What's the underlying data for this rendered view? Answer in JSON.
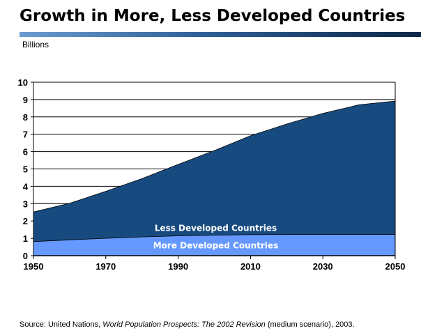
{
  "slide": {
    "title": "Growth in More, Less Developed Countries",
    "units": "Billions",
    "source": {
      "prefix": "Source: United Nations, ",
      "italic": "World Population Prospects: The 2002 Revision",
      "suffix": " (medium scenario), 2003."
    }
  },
  "chart_data": {
    "type": "area",
    "stacked": true,
    "ylabel": "Billions",
    "xlim": [
      1950,
      2050
    ],
    "ylim": [
      0,
      10
    ],
    "x_ticks": [
      1950,
      1970,
      1990,
      2010,
      2030,
      2050
    ],
    "y_ticks": [
      0,
      1,
      2,
      3,
      4,
      5,
      6,
      7,
      8,
      9,
      10
    ],
    "grid": true,
    "x": [
      1950,
      1960,
      1970,
      1980,
      1990,
      2000,
      2010,
      2020,
      2030,
      2040,
      2050
    ],
    "series": [
      {
        "name": "More Developed Countries",
        "color": "#6699ff",
        "values": [
          0.81,
          0.91,
          1.0,
          1.08,
          1.14,
          1.18,
          1.21,
          1.22,
          1.22,
          1.22,
          1.22
        ]
      },
      {
        "name": "Less Developed Countries",
        "color": "#174a7f",
        "values": [
          1.71,
          2.11,
          2.71,
          3.36,
          4.12,
          4.88,
          5.7,
          6.37,
          6.98,
          7.48,
          7.69
        ]
      }
    ]
  }
}
